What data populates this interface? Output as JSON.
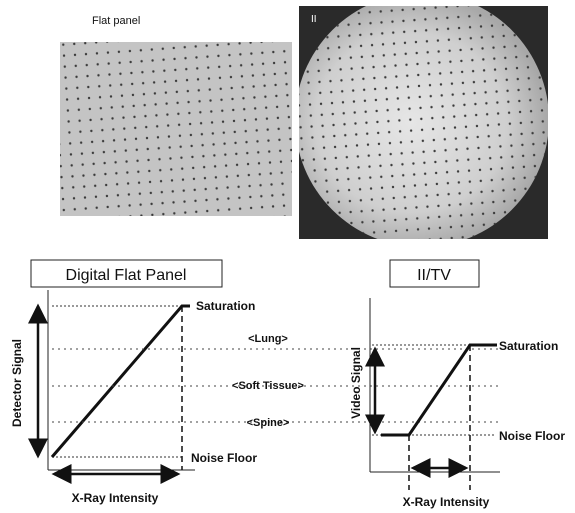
{
  "images": {
    "flat_panel_label": "Flat panel",
    "ii_label": "II"
  },
  "left_chart": {
    "title": "Digital Flat Panel",
    "ylabel": "Detector Signal",
    "xlabel": "X-Ray Intensity",
    "saturation_label": "Saturation",
    "noise_floor_label": "Noise Floor"
  },
  "right_chart": {
    "title": "II/TV",
    "ylabel": "Video Signal",
    "xlabel": "X-Ray Intensity",
    "saturation_label": "Saturation",
    "noise_floor_label": "Noise Floor"
  },
  "tissue_labels": {
    "lung": "<Lung>",
    "soft_tissue": "<Soft Tissue>",
    "spine": "<Spine>"
  },
  "colors": {
    "panel_gray": "#c4c4c4",
    "ii_background": "#2a2a2a",
    "dot": "#3a3a3a"
  }
}
